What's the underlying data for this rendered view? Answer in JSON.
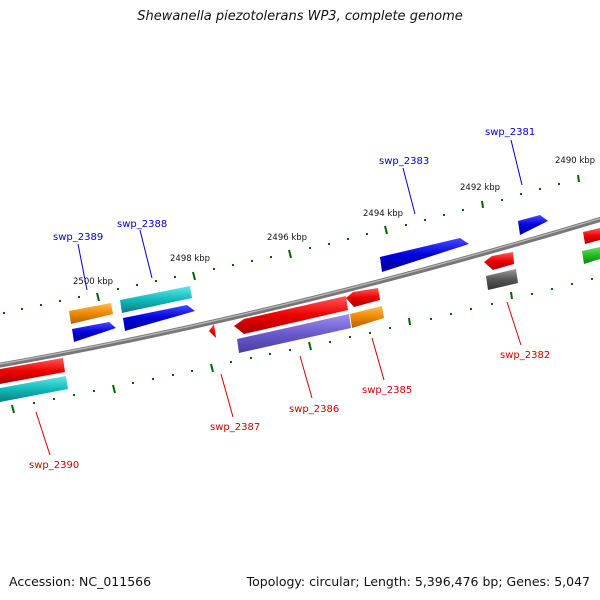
{
  "title": "Shewanella piezotolerans WP3, complete genome",
  "footer": {
    "accession": "Accession: NC_011566",
    "summary": "Topology: circular; Length: 5,396,476 bp; Genes: 5,047"
  },
  "ticks": [
    {
      "label": "2500 kbp"
    },
    {
      "label": "2498 kbp"
    },
    {
      "label": "2496 kbp"
    },
    {
      "label": "2494 kbp"
    },
    {
      "label": "2492 kbp"
    },
    {
      "label": "2490 kbp"
    }
  ],
  "labels": [
    {
      "text": "swp_2381",
      "color": "#0000cc"
    },
    {
      "text": "swp_2383",
      "color": "#0000cc"
    },
    {
      "text": "swp_2388",
      "color": "#0000cc"
    },
    {
      "text": "swp_2389",
      "color": "#0000cc"
    },
    {
      "text": "swp_2382",
      "color": "#cc0000"
    },
    {
      "text": "swp_2385",
      "color": "#cc0000"
    },
    {
      "text": "swp_2386",
      "color": "#cc0000"
    },
    {
      "text": "swp_2387",
      "color": "#cc0000"
    },
    {
      "text": "swp_2390",
      "color": "#cc0000"
    }
  ],
  "colors": {
    "red": "#ee0000",
    "blue": "#0000dd",
    "cyan": "#11bbbb",
    "orange": "#ee8800",
    "purple": "#6a5acd",
    "gray": "#555555",
    "green": "#22bb22",
    "backbone": "#777777",
    "tick": "#006600"
  }
}
